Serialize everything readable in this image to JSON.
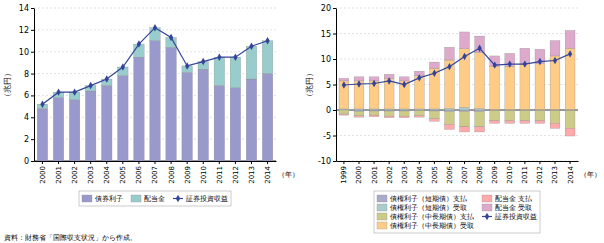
{
  "chart_data": [
    {
      "type": "bar",
      "stacked": true,
      "categories": [
        2000,
        2001,
        2002,
        2003,
        2004,
        2005,
        2006,
        2007,
        2008,
        2009,
        2010,
        2011,
        2012,
        2013,
        2014
      ],
      "series": [
        {
          "name": "債券利子",
          "type": "bar",
          "color": "#9999cc",
          "values": [
            4.8,
            5.8,
            5.6,
            6.4,
            6.9,
            7.8,
            9.5,
            11.0,
            10.4,
            8.1,
            8.4,
            6.9,
            6.7,
            7.5,
            8.0
          ]
        },
        {
          "name": "配当金",
          "type": "bar",
          "color": "#99cccc",
          "values": [
            0.4,
            0.5,
            0.7,
            0.5,
            0.6,
            0.8,
            1.2,
            1.2,
            0.9,
            0.6,
            0.7,
            2.6,
            2.8,
            3.0,
            3.0
          ]
        },
        {
          "name": "証券投資収益",
          "type": "line",
          "marker": "diamond",
          "color": "#334499",
          "values": [
            5.2,
            6.3,
            6.3,
            6.9,
            7.5,
            8.6,
            10.7,
            12.2,
            11.3,
            8.7,
            9.1,
            9.5,
            9.5,
            10.5,
            11.0
          ]
        }
      ],
      "xlabel": "（年）",
      "ylabel": "（兆円）",
      "ylim": [
        0,
        14
      ],
      "yticks": [
        0,
        2,
        4,
        6,
        8,
        10,
        12,
        14
      ],
      "grid": true,
      "legend": "bottom"
    },
    {
      "type": "bar",
      "stacked": true,
      "categories": [
        1999,
        2000,
        2001,
        2002,
        2003,
        2004,
        2005,
        2006,
        2007,
        2008,
        2009,
        2010,
        2011,
        2012,
        2013,
        2014
      ],
      "series": [
        {
          "name": "債権利子（短期債）支払",
          "type": "bar",
          "color": "#aaaacc",
          "values": [
            0.0,
            -0.3,
            -0.2,
            -0.2,
            -0.2,
            -0.1,
            -0.2,
            -0.3,
            -0.3,
            -0.3,
            -0.1,
            -0.1,
            -0.1,
            -0.1,
            -0.1,
            -0.1
          ]
        },
        {
          "name": "債権利子（短期債）受取",
          "type": "bar",
          "color": "#aacccc",
          "values": [
            0.2,
            0.2,
            0.2,
            0.2,
            0.2,
            0.2,
            0.2,
            0.3,
            0.5,
            0.3,
            0.1,
            0.1,
            0.1,
            0.1,
            0.1,
            0.1
          ]
        },
        {
          "name": "債権利子（中長期債）支払",
          "type": "bar",
          "color": "#cccc88",
          "values": [
            -0.8,
            -0.8,
            -0.8,
            -1.0,
            -1.0,
            -1.0,
            -1.5,
            -2.5,
            -3.0,
            -3.0,
            -2.0,
            -2.0,
            -2.0,
            -2.0,
            -2.5,
            -3.5
          ]
        },
        {
          "name": "債権利子（中長期債）受取",
          "type": "bar",
          "color": "#ffcc88",
          "values": [
            5.5,
            5.5,
            5.5,
            6.0,
            5.5,
            6.5,
            8.0,
            9.5,
            11.5,
            11.0,
            8.5,
            8.5,
            9.0,
            9.0,
            10.5,
            12.0
          ]
        },
        {
          "name": "配当金 支払",
          "type": "bar",
          "color": "#ffaaaa",
          "values": [
            -0.2,
            -0.3,
            -0.3,
            -0.3,
            -0.3,
            -0.3,
            -0.5,
            -1.0,
            -1.0,
            -1.0,
            -0.5,
            -0.5,
            -0.5,
            -0.5,
            -1.0,
            -1.5
          ]
        },
        {
          "name": "配当金 受取",
          "type": "bar",
          "color": "#ddaacc",
          "values": [
            0.5,
            0.8,
            0.8,
            0.8,
            0.8,
            0.9,
            1.2,
            2.5,
            3.3,
            3.2,
            2.0,
            2.5,
            3.0,
            2.8,
            3.0,
            3.5
          ]
        },
        {
          "name": "証券投資収益",
          "type": "line",
          "marker": "diamond",
          "color": "#334499",
          "values": [
            4.9,
            5.1,
            5.2,
            5.7,
            5.0,
            6.3,
            7.2,
            8.5,
            10.5,
            12.1,
            8.8,
            9.0,
            9.0,
            9.5,
            9.7,
            11.0
          ]
        }
      ],
      "xlabel": "（年）",
      "ylabel": "（兆円）",
      "ylim": [
        -10,
        20
      ],
      "yticks": [
        -10,
        -5,
        0,
        5,
        10,
        15,
        20
      ],
      "grid": true,
      "legend": "bottom"
    }
  ],
  "source": "資料：財務省「国際収支状況」から作成。"
}
